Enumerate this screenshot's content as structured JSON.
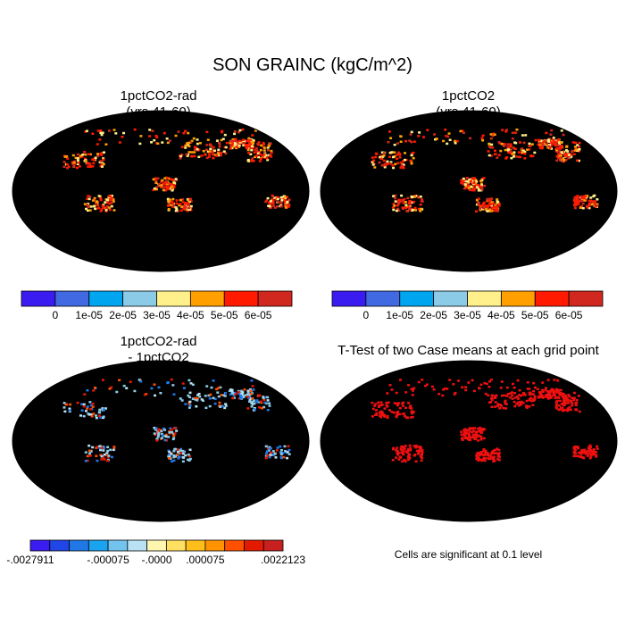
{
  "title": "SON GRAINC (kgC/m^2)",
  "panels": [
    {
      "id": "a",
      "title_line1": "1pctCO2-rad",
      "title_line2": "(yrs 41-60)",
      "field": "absolute",
      "ocean_color": "#ffffff",
      "land_color": "#4169e1"
    },
    {
      "id": "b",
      "title_line1": "1pctCO2",
      "title_line2": "(yrs 41-60)",
      "field": "absolute",
      "ocean_color": "#ffffff",
      "land_color": "#4169e1"
    },
    {
      "id": "c",
      "title_line1": "1pctCO2-rad",
      "title_line2": "- 1pctCO2",
      "field": "difference",
      "ocean_color": "#ffffff",
      "land_color": "#fff2a8"
    },
    {
      "id": "d",
      "title_line1": "T-Test of two Case means at each grid point",
      "title_line2": "",
      "field": "significance",
      "ocean_color": "#ffffff",
      "land_color": "#ffffff"
    }
  ],
  "colorbar_top": {
    "colors": [
      "#3b1cf0",
      "#4169e1",
      "#00a5f0",
      "#8ccbe8",
      "#fff08c",
      "#ffa000",
      "#ff1a00",
      "#d0281e"
    ],
    "labels": [
      "0",
      "1e-05",
      "2e-05",
      "3e-05",
      "4e-05",
      "5e-05",
      "6e-05"
    ]
  },
  "colorbar_diff": {
    "colors": [
      "#3b1cf0",
      "#2046e6",
      "#1f78e6",
      "#1aa3ee",
      "#72c4ee",
      "#b9e3f5",
      "#fff7b0",
      "#ffe060",
      "#ffbe1a",
      "#ff9400",
      "#ff5000",
      "#e41a00",
      "#c8201e"
    ],
    "labels": [
      "-.0027911",
      "-.000075",
      "-.0000",
      ".000075",
      ".0022123"
    ]
  },
  "significance_note": "Cells are significant at 0.1 level",
  "legend_colors": {
    "significant": "#ee1010",
    "coastline": "#000000"
  }
}
